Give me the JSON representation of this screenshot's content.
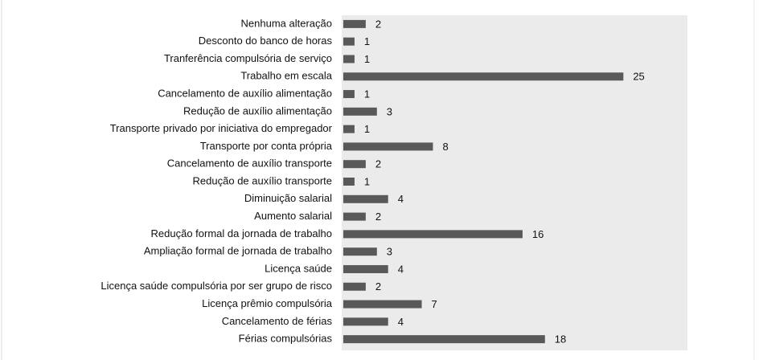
{
  "chart_data": {
    "type": "bar",
    "orientation": "horizontal",
    "categories": [
      "Nenhuma alteração",
      "Desconto do banco de horas",
      "Tranferência compulsória de serviço",
      "Trabalho em escala",
      "Cancelamento de auxílio alimentação",
      "Redução de auxílio alimentação",
      "Transporte privado por iniciativa do empregador",
      "Transporte por conta própria",
      "Cancelamento de auxílio transporte",
      "Redução de auxílio transporte",
      "Diminuição salarial",
      "Aumento salarial",
      "Redução formal da jornada de trabalho",
      "Ampliação formal de jornada de trabalho",
      "Licença saúde",
      "Licença saúde compulsória por ser grupo de risco",
      "Licença prêmio compulsória",
      "Cancelamento de férias",
      "Férias compulsórias"
    ],
    "values": [
      2,
      1,
      1,
      25,
      1,
      3,
      1,
      8,
      2,
      1,
      4,
      2,
      16,
      3,
      4,
      2,
      7,
      4,
      18
    ],
    "color": "#595959",
    "xlim": [
      0,
      30
    ]
  }
}
